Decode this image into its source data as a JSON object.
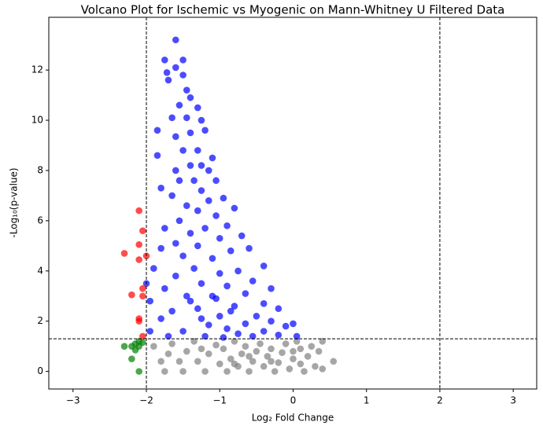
{
  "chart_data": {
    "type": "scatter",
    "title": "Volcano Plot for Ischemic vs Myogenic on Mann-Whitney U Filtered Data",
    "x_label": "Log₂ Fold Change",
    "y_label": "-Log₁₀(p-value)",
    "xlim": [
      -3.33,
      3.32
    ],
    "ylim": [
      -0.7,
      14.1
    ],
    "xticks": [
      {
        "value": -3,
        "label": "−3"
      },
      {
        "value": -2,
        "label": "−2"
      },
      {
        "value": -1,
        "label": "−1"
      },
      0,
      1,
      2,
      3
    ],
    "yticks": [
      0,
      2,
      4,
      6,
      8,
      10,
      12
    ],
    "vlines": [
      -2,
      2
    ],
    "hlines": [
      1.3
    ],
    "alpha": 0.7,
    "series": [
      {
        "color": "#808080",
        "x": [
          -1.9,
          -1.8,
          -1.7,
          -1.65,
          -1.55,
          -1.5,
          -1.45,
          -1.35,
          -1.3,
          -1.2,
          -1.15,
          -1.05,
          -1.0,
          -0.95,
          -0.9,
          -0.85,
          -0.8,
          -0.75,
          -0.7,
          -0.65,
          -0.6,
          -0.55,
          -0.5,
          -0.45,
          -0.4,
          -0.35,
          -0.3,
          -0.25,
          -0.2,
          -0.15,
          -0.1,
          -0.05,
          0.0,
          0.0,
          0.05,
          0.1,
          0.15,
          0.2,
          0.25,
          0.3,
          0.35,
          0.4,
          0.4,
          0.55,
          -1.75,
          -1.25,
          -0.6,
          -0.3,
          0.1,
          -0.8
        ],
        "values": [
          1.0,
          0.4,
          0.7,
          1.1,
          0.4,
          0.0,
          0.8,
          1.2,
          0.4,
          0.0,
          0.7,
          1.05,
          0.3,
          0.9,
          0.0,
          0.5,
          1.2,
          0.2,
          0.7,
          1.0,
          0.0,
          0.4,
          0.8,
          1.1,
          0.2,
          0.6,
          0.9,
          0.0,
          0.35,
          0.75,
          1.1,
          0.1,
          0.5,
          0.8,
          1.2,
          0.3,
          0.0,
          0.6,
          1.0,
          0.2,
          0.8,
          0.1,
          1.2,
          0.4,
          0.0,
          0.9,
          0.6,
          0.4,
          0.9,
          0.3
        ]
      },
      {
        "color": "#0000ff",
        "x": [
          -1.6,
          -1.75,
          -1.5,
          -1.6,
          -1.72,
          -1.7,
          -1.5,
          -1.45,
          -1.4,
          -1.3,
          -1.55,
          -1.85,
          -1.65,
          -1.45,
          -1.25,
          -1.6,
          -1.4,
          -1.2,
          -1.3,
          -1.5,
          -1.85,
          -1.1,
          -1.25,
          -1.6,
          -1.4,
          -1.15,
          -1.55,
          -1.35,
          -1.05,
          -1.25,
          -1.8,
          -1.65,
          -0.95,
          -1.15,
          -1.45,
          -0.8,
          -1.3,
          -1.05,
          -1.55,
          -1.75,
          -0.9,
          -1.2,
          -1.4,
          -0.7,
          -1.0,
          -1.6,
          -1.3,
          -0.6,
          -0.85,
          -1.8,
          -1.5,
          -1.1,
          -0.4,
          -0.75,
          -1.35,
          -1.9,
          -1.0,
          -1.6,
          -0.55,
          -0.3,
          -1.25,
          -0.9,
          -1.75,
          -2.0,
          -0.65,
          -1.45,
          -1.05,
          -0.4,
          -1.95,
          -0.2,
          -0.8,
          -1.3,
          -1.65,
          -0.5,
          -1.0,
          -1.8,
          -0.3,
          -0.65,
          -1.15,
          -0.9,
          -0.1,
          -1.5,
          -0.4,
          -1.95,
          -0.75,
          0.0,
          -0.2,
          -1.2,
          -1.7,
          -0.55,
          0.05,
          -0.95,
          -1.4,
          -1.1,
          -0.85,
          -1.25
        ],
        "values": [
          13.2,
          12.4,
          12.4,
          12.1,
          11.9,
          11.6,
          11.8,
          11.2,
          10.9,
          10.5,
          10.6,
          9.6,
          10.1,
          10.1,
          10.0,
          9.35,
          9.5,
          9.6,
          8.8,
          8.8,
          8.6,
          8.5,
          8.2,
          8.0,
          8.2,
          8.0,
          7.6,
          7.6,
          7.6,
          7.2,
          7.3,
          7.0,
          6.9,
          6.8,
          6.6,
          6.5,
          6.4,
          6.2,
          6.0,
          5.7,
          5.8,
          5.7,
          5.5,
          5.4,
          5.3,
          5.1,
          5.0,
          4.9,
          4.8,
          4.9,
          4.6,
          4.5,
          4.2,
          4.0,
          4.1,
          4.1,
          3.9,
          3.8,
          3.6,
          3.3,
          3.5,
          3.4,
          3.3,
          3.5,
          3.1,
          3.0,
          2.9,
          2.7,
          2.8,
          2.5,
          2.6,
          2.5,
          2.4,
          2.2,
          2.2,
          2.1,
          2.0,
          1.9,
          1.85,
          1.7,
          1.8,
          1.6,
          1.6,
          1.6,
          1.5,
          1.9,
          1.45,
          1.4,
          1.4,
          1.4,
          1.4,
          1.35,
          2.8,
          3.0,
          2.4,
          2.1
        ]
      },
      {
        "color": "#ff0000",
        "x": [
          -2.1,
          -2.3,
          -2.05,
          -2.1,
          -2.1,
          -2.0,
          -2.05,
          -2.2,
          -2.05,
          -2.1,
          -2.1,
          -2.05
        ],
        "values": [
          6.4,
          4.7,
          5.6,
          5.05,
          4.45,
          4.6,
          3.3,
          3.05,
          3.0,
          2.1,
          2.0,
          1.4
        ]
      },
      {
        "color": "#008000",
        "x": [
          -2.1,
          -2.2,
          -2.3,
          -2.2,
          -2.15,
          -2.1,
          -2.05,
          -2.15,
          -2.1
        ],
        "values": [
          0.0,
          0.5,
          1.0,
          1.0,
          1.1,
          1.2,
          1.15,
          0.85,
          1.0
        ]
      }
    ]
  }
}
